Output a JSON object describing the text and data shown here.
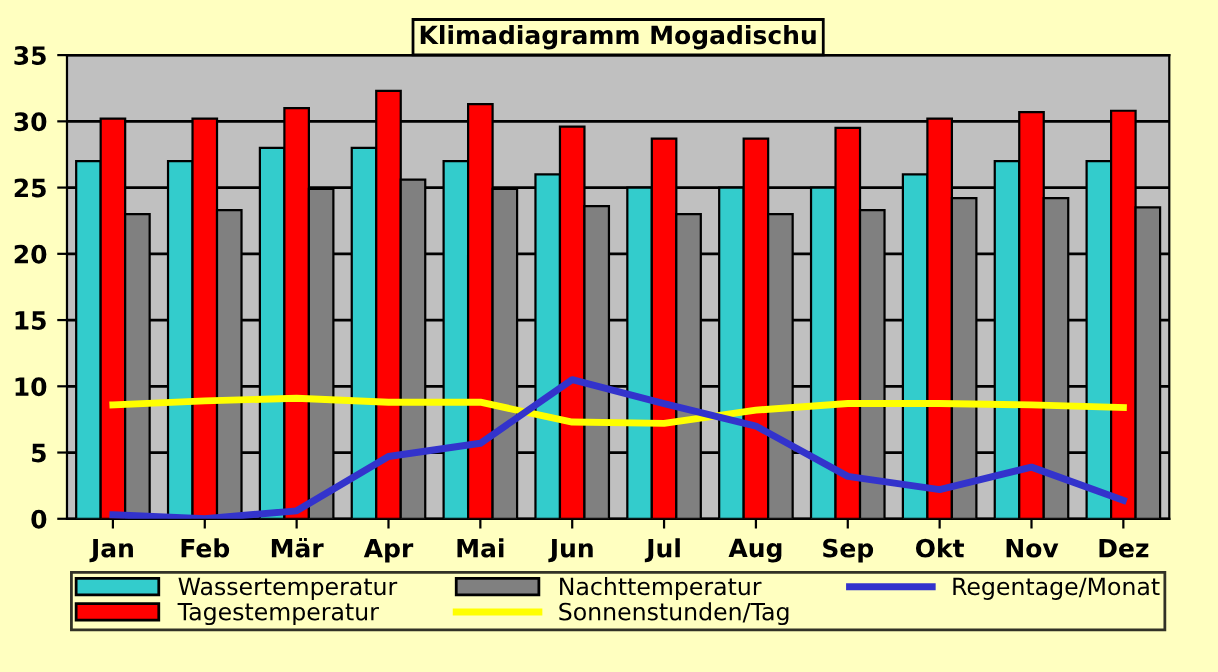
{
  "chart_data": {
    "type": "bar",
    "title": "Klimadiagramm Mogadischu",
    "categories": [
      "Jan",
      "Feb",
      "Mär",
      "Apr",
      "Mai",
      "Jun",
      "Jul",
      "Aug",
      "Sep",
      "Okt",
      "Nov",
      "Dez"
    ],
    "series": [
      {
        "name": "Wassertemperatur",
        "color": "#33cccc",
        "values": [
          27,
          27,
          28,
          28,
          27,
          26,
          25,
          25,
          25,
          26,
          27,
          27
        ]
      },
      {
        "name": "Tagestemperatur",
        "color": "#ff0000",
        "values": [
          30.2,
          30.2,
          31,
          32.3,
          31.3,
          29.6,
          28.7,
          28.7,
          29.5,
          30.2,
          30.7,
          30.8
        ]
      },
      {
        "name": "Nachttemperatur",
        "color": "#808080",
        "values": [
          23,
          23.3,
          24.9,
          25.6,
          24.9,
          23.6,
          23,
          23,
          23.3,
          24.2,
          24.2,
          23.5
        ]
      },
      {
        "name": "Sonnenstunden/Tag",
        "type": "line",
        "color": "#ffff00",
        "values": [
          8.6,
          8.9,
          9.1,
          8.8,
          8.8,
          7.3,
          7.2,
          8.2,
          8.7,
          8.7,
          8.6,
          8.4
        ]
      },
      {
        "name": "Regentage/Monat",
        "type": "line",
        "color": "#3333cc",
        "values": [
          0.3,
          0,
          0.6,
          4.7,
          5.7,
          10.5,
          8.7,
          7,
          3.2,
          2.2,
          3.9,
          1.4
        ]
      }
    ],
    "ylim": [
      0,
      35
    ],
    "yticks": [
      0,
      5,
      10,
      15,
      20,
      25,
      30,
      35
    ],
    "grid": "y",
    "legend": "bottom"
  }
}
